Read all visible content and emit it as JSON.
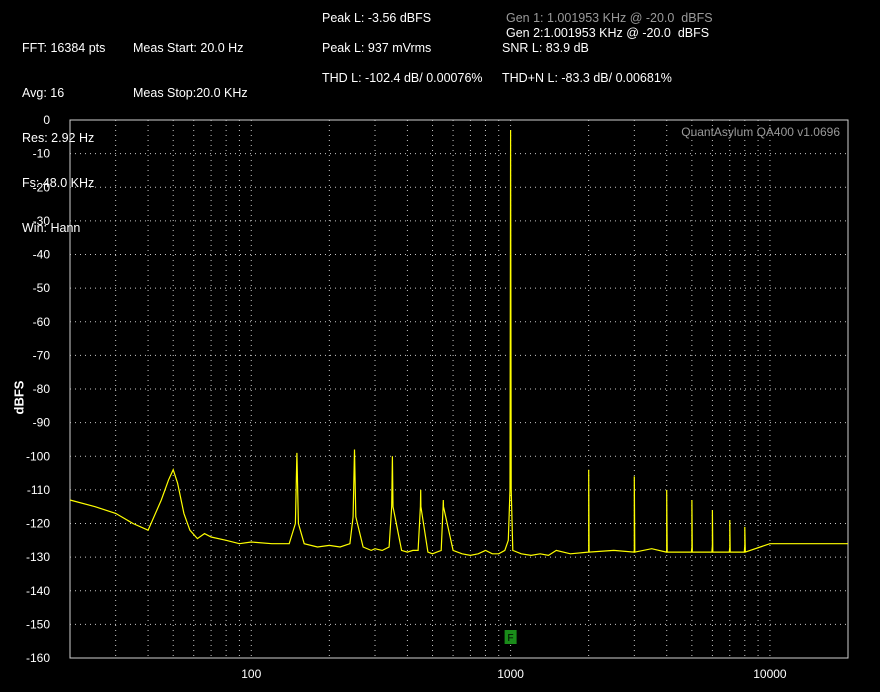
{
  "header": {
    "col1": [
      "FFT: 16384 pts",
      "Avg: 16",
      "Res: 2.92 Hz",
      "Fs: 48.0 KHz",
      "Win: Hann"
    ],
    "col2": [
      "Meas Start: 20.0 Hz",
      "Meas Stop:20.0 KHz"
    ],
    "peak_l_dbfs": "Peak L: -3.56 dBFS",
    "peak_l_mvrms": "Peak L: 937 mVrms",
    "thd_l": "THD L: -102.4 dB/ 0.00076%",
    "gen1": "Gen 1: 1.001953 KHz @ -20.0  dBFS",
    "gen2": "Gen 2:1.001953 KHz @ -20.0  dBFS",
    "snr_l": "SNR L: 83.9 dB",
    "thdn_l": "THD+N L: -83.3 dB/ 0.00681%"
  },
  "watermark": "QuantAsylum QA400 v1.0696",
  "marker_label": "F",
  "colors": {
    "background": "#000000",
    "trace": "#ffff00",
    "grid": "#c8c8c8",
    "marker": "#1a8c1a"
  },
  "chart_data": {
    "type": "line",
    "ylabel": "dBFS",
    "xlabel": "",
    "x_scale": "log",
    "xlim": [
      20,
      20000
    ],
    "ylim": [
      -160,
      0
    ],
    "grid": true,
    "x_ticks": [
      100,
      1000,
      10000
    ],
    "x_tick_labels": [
      "100",
      "1000",
      "10000"
    ],
    "y_ticks": [
      0,
      -10,
      -20,
      -30,
      -40,
      -50,
      -60,
      -70,
      -80,
      -90,
      -100,
      -110,
      -120,
      -130,
      -140,
      -150,
      -160
    ],
    "y_tick_labels": [
      "0",
      "-10",
      "-20",
      "-30",
      "-40",
      "-50",
      "-60",
      "-70",
      "-80",
      "-90",
      "-100",
      "-110",
      "-120",
      "-130",
      "-140",
      "-150",
      "-160"
    ],
    "marker_x": 1000,
    "series": [
      {
        "color": "#ffff00",
        "x": [
          20,
          25,
          30,
          35,
          40,
          45,
          48,
          50,
          52,
          55,
          58,
          62,
          66,
          70,
          80,
          90,
          100,
          120,
          140,
          148,
          150,
          152,
          160,
          180,
          200,
          220,
          240,
          247,
          250,
          253,
          270,
          290,
          300,
          320,
          340,
          348,
          350,
          352,
          380,
          400,
          420,
          440,
          449,
          450,
          451,
          480,
          500,
          520,
          540,
          549,
          550,
          551,
          600,
          650,
          700,
          750,
          800,
          850,
          900,
          950,
          980,
          995,
          1000,
          1005,
          1020,
          1100,
          1200,
          1300,
          1400,
          1500,
          1700,
          2000,
          2500,
          3000,
          3500,
          4000,
          5000,
          6000,
          7000,
          8000,
          10000,
          12000,
          15000,
          20000
        ],
        "y": [
          -113,
          -115,
          -117,
          -120,
          -122,
          -113,
          -107,
          -104,
          -108,
          -117,
          -122,
          -124.5,
          -123,
          -124,
          -125,
          -126,
          -125.5,
          -126,
          -126,
          -120,
          -99,
          -120,
          -126,
          -127,
          -126.5,
          -127,
          -126,
          -118,
          -98,
          -118,
          -127,
          -128,
          -127.5,
          -128,
          -127,
          -115,
          -100,
          -115,
          -128,
          -128.5,
          -128,
          -128,
          -115,
          -110,
          -115,
          -128.5,
          -129,
          -128.5,
          -128,
          -115,
          -113,
          -115,
          -128,
          -129,
          -129.5,
          -129,
          -128,
          -129,
          -129,
          -128,
          -125,
          -110,
          -3,
          -110,
          -128,
          -129,
          -129.5,
          -129,
          -129.5,
          -128,
          -129,
          -128.5,
          -128,
          -128,
          -127.5,
          -128,
          -127,
          -126.5,
          -127,
          -126.5,
          -126,
          -126,
          -126,
          -126
        ]
      }
    ],
    "harmonics": {
      "x": [
        2000,
        3000,
        4000,
        5000,
        6000,
        7000,
        8000
      ],
      "y": [
        -104,
        -106,
        -110,
        -113,
        -116,
        -119,
        -121
      ]
    }
  }
}
